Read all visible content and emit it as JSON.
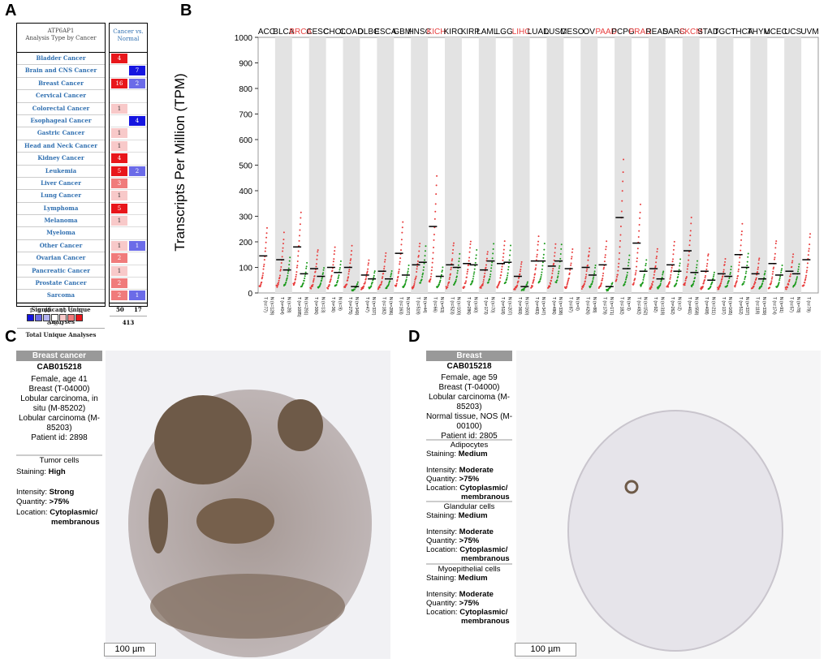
{
  "panel_labels": {
    "a": "A",
    "b": "B",
    "c": "C",
    "d": "D"
  },
  "panelA": {
    "header_gene": "ATP6AP1",
    "header_sub": "Analysis Type by Cancer",
    "col_header_line1": "Cancer vs.",
    "col_header_line2": "Normal",
    "rows": [
      {
        "name": "Bladder Cancer",
        "up": "4",
        "down": ""
      },
      {
        "name": "Brain and CNS Cancer",
        "up": "",
        "down": "7"
      },
      {
        "name": "Breast Cancer",
        "up": "16",
        "down": "2"
      },
      {
        "name": "Cervical Cancer",
        "up": "",
        "down": ""
      },
      {
        "name": "Colorectal Cancer",
        "up": "1",
        "down": ""
      },
      {
        "name": "Esophageal Cancer",
        "up": "",
        "down": "4"
      },
      {
        "name": "Gastric Cancer",
        "up": "1",
        "down": ""
      },
      {
        "name": "Head and Neck Cancer",
        "up": "1",
        "down": ""
      },
      {
        "name": "Kidney Cancer",
        "up": "4",
        "down": ""
      },
      {
        "name": "Leukemia",
        "up": "5",
        "down": "2"
      },
      {
        "name": "Liver Cancer",
        "up": "3",
        "down": ""
      },
      {
        "name": "Lung Cancer",
        "up": "1",
        "down": ""
      },
      {
        "name": "Lymphoma",
        "up": "5",
        "down": ""
      },
      {
        "name": "Melanoma",
        "up": "1",
        "down": ""
      },
      {
        "name": "Myeloma",
        "up": "",
        "down": ""
      },
      {
        "name": "Other Cancer",
        "up": "1",
        "down": "1"
      },
      {
        "name": "Ovarian Cancer",
        "up": "2",
        "down": ""
      },
      {
        "name": "Pancreatic Cancer",
        "up": "1",
        "down": ""
      },
      {
        "name": "Prostate Cancer",
        "up": "2",
        "down": ""
      },
      {
        "name": "Sarcoma",
        "up": "2",
        "down": "1"
      }
    ],
    "sig_label": "Significant Unique Analyses",
    "sig_up": "50",
    "sig_down": "17",
    "total_label": "Total Unique Analyses",
    "total_value": "413",
    "legend_nums": [
      "1",
      "5",
      "10",
      "",
      "10",
      "5",
      "1"
    ],
    "legend_unit": "%",
    "colors": {
      "up_strong": "#e8161b",
      "up_mid": "#f07b7b",
      "up_light": "#f8c9c9",
      "down_strong": "#1515e0",
      "down_mid": "#6b6be8"
    }
  },
  "chart_data": {
    "type": "scatter",
    "title": "",
    "ylabel": "Transcripts Per Million (TPM)",
    "ylim": [
      0,
      1000
    ],
    "yticks": [
      0,
      100,
      200,
      300,
      400,
      500,
      600,
      700,
      800,
      900,
      1000
    ],
    "cancers": [
      {
        "name": "ACC",
        "red": false,
        "tumor_median": 145,
        "normal_median": null,
        "tumor_n": "T (n=77)",
        "normal_n": "N (n=128)"
      },
      {
        "name": "BLCA",
        "red": false,
        "tumor_median": 130,
        "normal_median": 90,
        "tumor_n": "T (n=404)",
        "normal_n": "N (n=28)"
      },
      {
        "name": "BRCA",
        "red": true,
        "tumor_median": 180,
        "normal_median": 75,
        "tumor_n": "T (n=1085)",
        "normal_n": "N (n=291)"
      },
      {
        "name": "CESC",
        "red": false,
        "tumor_median": 95,
        "normal_median": 65,
        "tumor_n": "T (n=306)",
        "normal_n": "N (n=13)"
      },
      {
        "name": "CHOL",
        "red": false,
        "tumor_median": 100,
        "normal_median": 80,
        "tumor_n": "T (n=36)",
        "normal_n": "N (n=9)"
      },
      {
        "name": "COAD",
        "red": false,
        "tumor_median": 100,
        "normal_median": 25,
        "tumor_n": "T (n=275)",
        "normal_n": "N (n=349)"
      },
      {
        "name": "DLBC",
        "red": false,
        "tumor_median": 70,
        "normal_median": 55,
        "tumor_n": "T (n=47)",
        "normal_n": "N (n=337)"
      },
      {
        "name": "ESCA",
        "red": false,
        "tumor_median": 85,
        "normal_median": 55,
        "tumor_n": "T (n=182)",
        "normal_n": "N (n=286)"
      },
      {
        "name": "GBM",
        "red": false,
        "tumor_median": 155,
        "normal_median": 70,
        "tumor_n": "T (n=163)",
        "normal_n": "N (n=207)"
      },
      {
        "name": "HNSC",
        "red": false,
        "tumor_median": 110,
        "normal_median": 120,
        "tumor_n": "T (n=519)",
        "normal_n": "N (n=44)"
      },
      {
        "name": "KICH",
        "red": true,
        "tumor_median": 260,
        "normal_median": 65,
        "tumor_n": "T (n=66)",
        "normal_n": "N (n=53)"
      },
      {
        "name": "KIRC",
        "red": false,
        "tumor_median": 110,
        "normal_median": 100,
        "tumor_n": "T (n=523)",
        "normal_n": "N (n=100)"
      },
      {
        "name": "KIRP",
        "red": false,
        "tumor_median": 115,
        "normal_median": 110,
        "tumor_n": "T (n=286)",
        "normal_n": "N (n=60)"
      },
      {
        "name": "LAML",
        "red": false,
        "tumor_median": 90,
        "normal_median": 125,
        "tumor_n": "T (n=173)",
        "normal_n": "N (n=70)"
      },
      {
        "name": "LGG",
        "red": false,
        "tumor_median": 115,
        "normal_median": 120,
        "tumor_n": "T (n=518)",
        "normal_n": "N (n=207)"
      },
      {
        "name": "LIHC",
        "red": true,
        "tumor_median": 65,
        "normal_median": 25,
        "tumor_n": "T (n=369)",
        "normal_n": "N (n=160)"
      },
      {
        "name": "LUAD",
        "red": false,
        "tumor_median": 125,
        "normal_median": 125,
        "tumor_n": "T (n=483)",
        "normal_n": "N (n=347)"
      },
      {
        "name": "LUSC",
        "red": false,
        "tumor_median": 105,
        "normal_median": 125,
        "tumor_n": "T (n=486)",
        "normal_n": "N (n=338)"
      },
      {
        "name": "MESO",
        "red": false,
        "tumor_median": 95,
        "normal_median": null,
        "tumor_n": "T (n=87)",
        "normal_n": "N (n=0)"
      },
      {
        "name": "OV",
        "red": false,
        "tumor_median": 100,
        "normal_median": 70,
        "tumor_n": "T (n=426)",
        "normal_n": "N (n=88)"
      },
      {
        "name": "PAAD",
        "red": true,
        "tumor_median": 110,
        "normal_median": 25,
        "tumor_n": "T (n=179)",
        "normal_n": "N (n=171)"
      },
      {
        "name": "PCPG",
        "red": false,
        "tumor_median": 295,
        "normal_median": 95,
        "tumor_n": "T (n=182)",
        "normal_n": "N (n=3)"
      },
      {
        "name": "PRAD",
        "red": true,
        "tumor_median": 195,
        "normal_median": 85,
        "tumor_n": "T (n=492)",
        "normal_n": "N (n=152)"
      },
      {
        "name": "READ",
        "red": false,
        "tumor_median": 95,
        "normal_median": 55,
        "tumor_n": "T (n=92)",
        "normal_n": "N (n=318)"
      },
      {
        "name": "SARC",
        "red": false,
        "tumor_median": 110,
        "normal_median": 85,
        "tumor_n": "T (n=262)",
        "normal_n": "N (n=2)"
      },
      {
        "name": "SKCM",
        "red": true,
        "tumor_median": 165,
        "normal_median": 80,
        "tumor_n": "T (n=461)",
        "normal_n": "N (n=558)"
      },
      {
        "name": "STAD",
        "red": false,
        "tumor_median": 85,
        "normal_median": 50,
        "tumor_n": "T (n=408)",
        "normal_n": "N (n=211)"
      },
      {
        "name": "TGCT",
        "red": false,
        "tumor_median": 75,
        "normal_median": 65,
        "tumor_n": "T (n=137)",
        "normal_n": "N (n=165)"
      },
      {
        "name": "THCA",
        "red": false,
        "tumor_median": 150,
        "normal_median": 100,
        "tumor_n": "T (n=512)",
        "normal_n": "N (n=337)"
      },
      {
        "name": "THYM",
        "red": false,
        "tumor_median": 75,
        "normal_median": 55,
        "tumor_n": "T (n=118)",
        "normal_n": "N (n=339)"
      },
      {
        "name": "UCEC",
        "red": false,
        "tumor_median": 115,
        "normal_median": 70,
        "tumor_n": "T (n=174)",
        "normal_n": "N (n=91)"
      },
      {
        "name": "UCS",
        "red": false,
        "tumor_median": 85,
        "normal_median": 75,
        "tumor_n": "T (n=57)",
        "normal_n": "N (n=78)"
      },
      {
        "name": "UVM",
        "red": false,
        "tumor_median": 130,
        "normal_median": null,
        "tumor_n": "T (n=79)",
        "normal_n": ""
      }
    ],
    "colors": {
      "tumor": "#e83a3a",
      "normal": "#1a9a1a",
      "highlight": "#e84040",
      "band": "#e3e3e3"
    }
  },
  "panelC": {
    "header": "Breast cancer",
    "antibody": "CAB015218",
    "lines": [
      "Female, age 41",
      "Breast (T-04000)",
      "Lobular carcinoma, in",
      "situ (M-85202)",
      "Lobular carcinoma (M-",
      "85203)",
      "Patient id: 2898"
    ],
    "section": "Tumor cells",
    "staining_label": "Staining:",
    "staining_value": "High",
    "intensity_label": "Intensity:",
    "intensity_value": "Strong",
    "quantity_label": "Quantity:",
    "quantity_value": ">75%",
    "location_label": "Location:",
    "location_value1": "Cytoplasmic/",
    "location_value2": "membranous",
    "scale": "100 µm"
  },
  "panelD": {
    "header": "Breast",
    "antibody": "CAB015218",
    "lines": [
      "Female, age 59",
      "Breast (T-04000)",
      "Lobular carcinoma (M-",
      "85203)",
      "Normal tissue, NOS (M-",
      "00100)",
      "Patient id: 2805"
    ],
    "sections": [
      {
        "title": "Adipocytes",
        "staining": "Medium",
        "intensity": "Moderate",
        "quantity": ">75%",
        "loc1": "Cytoplasmic/",
        "loc2": "membranous"
      },
      {
        "title": "Glandular cells",
        "staining": "Medium",
        "intensity": "Moderate",
        "quantity": ">75%",
        "loc1": "Cytoplasmic/",
        "loc2": "membranous"
      },
      {
        "title": "Myoepithelial cells",
        "staining": "Medium",
        "intensity": "Moderate",
        "quantity": ">75%",
        "loc1": "Cytoplasmic/",
        "loc2": "membranous"
      }
    ],
    "labels": {
      "staining": "Staining:",
      "intensity": "Intensity:",
      "quantity": "Quantity:",
      "location": "Location:"
    },
    "scale": "100 µm"
  }
}
